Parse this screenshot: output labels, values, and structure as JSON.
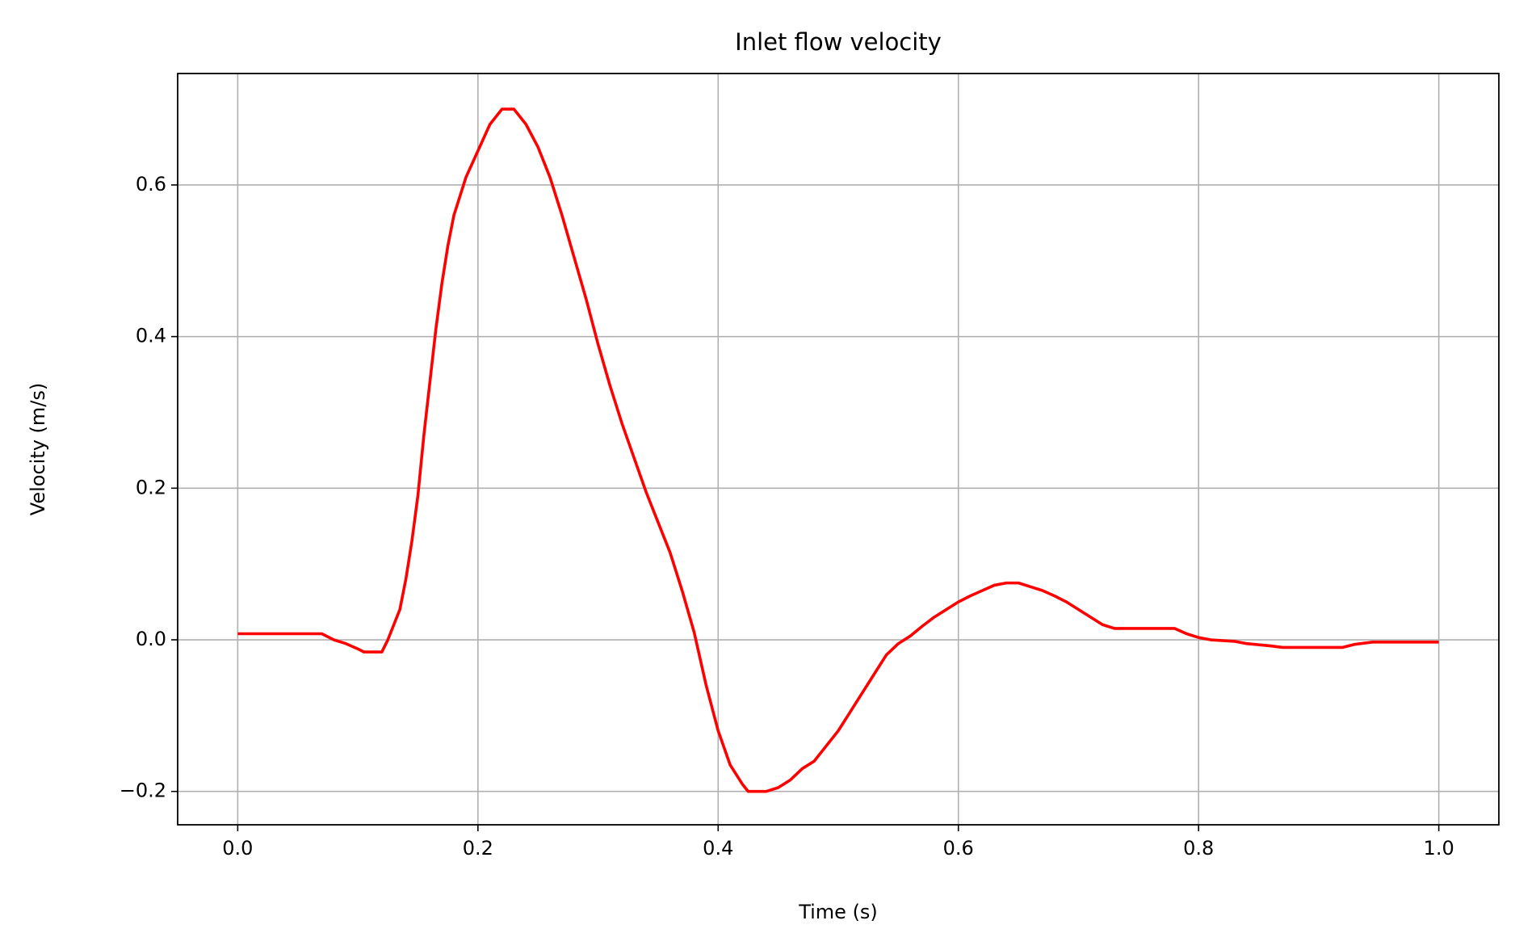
{
  "chart_data": {
    "type": "line",
    "title": "Inlet flow velocity",
    "x_label": "Time (s)",
    "y_label": "Velocity (m/s)",
    "series": [
      {
        "color": "#ff0000",
        "x": [
          0,
          0.07,
          0.08,
          0.09,
          0.1,
          0.105,
          0.12,
          0.125,
          0.13,
          0.135,
          0.14,
          0.145,
          0.15,
          0.155,
          0.16,
          0.165,
          0.17,
          0.175,
          0.18,
          0.19,
          0.2,
          0.21,
          0.22,
          0.23,
          0.24,
          0.25,
          0.26,
          0.27,
          0.28,
          0.29,
          0.3,
          0.31,
          0.32,
          0.33,
          0.34,
          0.35,
          0.36,
          0.37,
          0.38,
          0.39,
          0.4,
          0.41,
          0.42,
          0.425,
          0.44,
          0.45,
          0.46,
          0.47,
          0.48,
          0.49,
          0.5,
          0.51,
          0.52,
          0.53,
          0.54,
          0.55,
          0.56,
          0.57,
          0.58,
          0.59,
          0.6,
          0.61,
          0.62,
          0.63,
          0.64,
          0.65,
          0.66,
          0.67,
          0.68,
          0.69,
          0.7,
          0.71,
          0.72,
          0.73,
          0.78,
          0.79,
          0.8,
          0.81,
          0.83,
          0.84,
          0.86,
          0.87,
          0.92,
          0.93,
          0.945,
          1.0
        ],
        "values": [
          0.008,
          0.008,
          0.0,
          -0.005,
          -0.012,
          -0.016,
          -0.016,
          0.0,
          0.02,
          0.04,
          0.08,
          0.13,
          0.19,
          0.27,
          0.34,
          0.41,
          0.47,
          0.52,
          0.56,
          0.61,
          0.645,
          0.68,
          0.7,
          0.7,
          0.68,
          0.65,
          0.61,
          0.56,
          0.505,
          0.45,
          0.39,
          0.335,
          0.285,
          0.24,
          0.195,
          0.155,
          0.115,
          0.065,
          0.01,
          -0.06,
          -0.12,
          -0.165,
          -0.19,
          -0.2,
          -0.2,
          -0.195,
          -0.185,
          -0.17,
          -0.16,
          -0.14,
          -0.12,
          -0.095,
          -0.07,
          -0.045,
          -0.02,
          -0.005,
          0.005,
          0.018,
          0.03,
          0.04,
          0.05,
          0.058,
          0.065,
          0.072,
          0.075,
          0.075,
          0.07,
          0.065,
          0.058,
          0.05,
          0.04,
          0.03,
          0.02,
          0.015,
          0.015,
          0.008,
          0.003,
          0.0,
          -0.002,
          -0.005,
          -0.008,
          -0.01,
          -0.01,
          -0.006,
          -0.003,
          -0.003
        ]
      }
    ],
    "xlim": [
      -0.05,
      1.05
    ],
    "xticks": [
      {
        "value": 0,
        "label": "0.0"
      },
      0.2,
      0.4,
      0.6,
      0.8,
      {
        "value": 1,
        "label": "1.0"
      }
    ],
    "ylim": [
      -0.244,
      0.747
    ],
    "yticks": [
      {
        "value": -0.2,
        "label": "−0.2"
      },
      {
        "value": 0,
        "label": "0.0"
      },
      0.2,
      0.4,
      0.6
    ],
    "grid": true
  }
}
